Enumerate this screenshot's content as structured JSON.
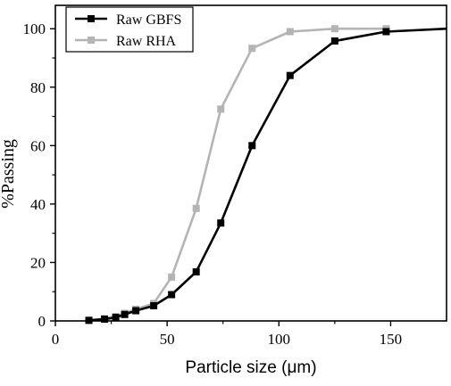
{
  "chart_data": {
    "type": "line",
    "xlabel": "Particle size (μm)",
    "ylabel": "%Passing",
    "xlim": [
      0,
      175
    ],
    "ylim": [
      0,
      108
    ],
    "x_ticks": [
      0,
      50,
      100,
      150
    ],
    "y_ticks": [
      0,
      20,
      40,
      60,
      80,
      100
    ],
    "grid": false,
    "legend_position": "top-left",
    "series": [
      {
        "name": "Raw GBFS",
        "color": "#000000",
        "marker": "square",
        "x": [
          15,
          22,
          27,
          31,
          36,
          44,
          52,
          63,
          74,
          88,
          105,
          125,
          148,
          175
        ],
        "y": [
          0.2,
          0.6,
          1.2,
          2.2,
          3.5,
          5.2,
          9.0,
          16.8,
          33.5,
          60.0,
          84.0,
          95.8,
          99.0,
          100.0
        ],
        "marker_points": [
          15,
          22,
          27,
          31,
          36,
          44,
          52,
          63,
          74,
          88,
          105,
          125,
          148
        ]
      },
      {
        "name": "Raw RHA",
        "color": "#b4b4b4",
        "marker": "square",
        "x": [
          15,
          22,
          27,
          31,
          36,
          44,
          52,
          63,
          74,
          88,
          105,
          125,
          148
        ],
        "y": [
          0.2,
          0.8,
          1.5,
          2.6,
          4.0,
          6.0,
          15.0,
          38.5,
          72.5,
          93.3,
          99.0,
          100.0,
          100.0
        ],
        "marker_points": [
          15,
          22,
          27,
          31,
          36,
          44,
          52,
          63,
          74,
          88,
          105,
          125,
          148
        ]
      }
    ]
  }
}
